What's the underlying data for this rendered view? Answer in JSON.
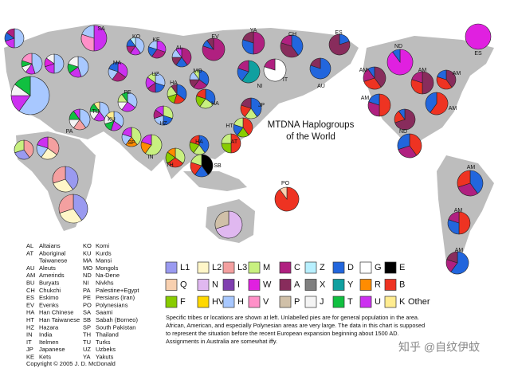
{
  "title": [
    "MTDNA Haplogroups",
    "of the World"
  ],
  "note": [
    "Specific tribes or locations are shown at left. Unlabelled pies are for general population in the area.",
    "African, American, and especially Polynesian areas are very large. The data in this chart is supposed",
    "to represent the situation before the recent European expansion beginning about 1500 AD.",
    "Assignments in Australia are somewhat iffy."
  ],
  "copyright": "Copyright © 2005 J. D. McDonald",
  "watermark": "知乎 @自纹伊蚊",
  "abbreviations": [
    [
      {
        "code": "AL",
        "name": "Altaians"
      },
      {
        "code": "AT",
        "name": "Aboriginal"
      },
      {
        "code": null,
        "name": "Taiwanese"
      },
      {
        "code": "AU",
        "name": "Aleuts"
      },
      {
        "code": "AM",
        "name": "Amerinds"
      },
      {
        "code": "BU",
        "name": "Buryats"
      },
      {
        "code": "CH",
        "name": "Chukchi"
      },
      {
        "code": "ES",
        "name": "Eskimo"
      },
      {
        "code": "EV",
        "name": "Evenks"
      },
      {
        "code": "HA",
        "name": "Han Chinese"
      },
      {
        "code": "HT",
        "name": "Han Taiwanese"
      },
      {
        "code": "HZ",
        "name": "Hazara"
      },
      {
        "code": "IN",
        "name": "India"
      },
      {
        "code": "IT",
        "name": "Itelmen"
      },
      {
        "code": "JP",
        "name": "Japanese"
      },
      {
        "code": "KE",
        "name": "Kets"
      }
    ],
    [
      {
        "code": "KO",
        "name": "Komi"
      },
      {
        "code": "KU",
        "name": "Kurds"
      },
      {
        "code": "MA",
        "name": "Mansi"
      },
      {
        "code": "MO",
        "name": "Mongols"
      },
      {
        "code": "ND",
        "name": "Na-Dene"
      },
      {
        "code": "NI",
        "name": "Nivkhs"
      },
      {
        "code": "PA",
        "name": "Palestine+Egypt"
      },
      {
        "code": "PE",
        "name": "Persians (Iran)"
      },
      {
        "code": "PO",
        "name": "Polynesians"
      },
      {
        "code": "SA",
        "name": "Saami"
      },
      {
        "code": "SB",
        "name": "Sabah (Borneo)"
      },
      {
        "code": "SP",
        "name": "South Pakistan"
      },
      {
        "code": "TH",
        "name": "Thailand"
      },
      {
        "code": "TU",
        "name": "Turks"
      },
      {
        "code": "UZ",
        "name": "Uzbeks"
      },
      {
        "code": "YA",
        "name": "Yakuts"
      }
    ]
  ],
  "legend": [
    [
      {
        "label": "L1",
        "color": "#9a9af0"
      },
      {
        "label": "L2",
        "color": "#fff6c8"
      },
      {
        "label": "L3",
        "color": "#f4a0a0"
      },
      {
        "label": "M",
        "color": "#c8f080"
      },
      {
        "label": "C",
        "color": "#b02080"
      },
      {
        "label": "Z",
        "color": "#b8f0ff"
      },
      {
        "label": "D",
        "color": "#2266dd"
      },
      {
        "label": "G",
        "color": "#ffffff"
      },
      {
        "label": "E",
        "color": "#000000"
      }
    ],
    [
      {
        "label": "Q",
        "color": "#f8d0b0"
      },
      {
        "label": "N",
        "color": "#e0b8f0"
      },
      {
        "label": "I",
        "color": "#8040b0"
      },
      {
        "label": "W",
        "color": "#e020e0"
      },
      {
        "label": "A",
        "color": "#882c5c"
      },
      {
        "label": "X",
        "color": "#808080"
      },
      {
        "label": "Y",
        "color": "#10a0a0"
      },
      {
        "label": "R",
        "color": "#ff8c00"
      },
      {
        "label": "B",
        "color": "#ee3322"
      }
    ],
    [
      {
        "label": "F",
        "color": "#88cc00"
      },
      {
        "label": "HV",
        "color": "#ffd800"
      },
      {
        "label": "H",
        "color": "#a8c8ff"
      },
      {
        "label": "V",
        "color": "#ff90c8"
      },
      {
        "label": "P",
        "color": "#d0c0a8"
      },
      {
        "label": "J",
        "color": "#f4f4f4"
      },
      {
        "label": "T",
        "color": "#10c040"
      },
      {
        "label": "U",
        "color": "#cc30f0"
      },
      {
        "label": "K",
        "color": "#ffec90"
      },
      {
        "label": "Other"
      }
    ]
  ],
  "pies": [
    {
      "label": null,
      "groups": [
        "H",
        "U",
        "D",
        "C"
      ],
      "values": [
        50,
        20,
        15,
        15
      ]
    },
    {
      "label": "SA",
      "groups": [
        "U",
        "V",
        "H"
      ],
      "values": [
        50,
        30,
        20
      ]
    },
    {
      "label": "KO",
      "groups": [
        "H",
        "U",
        "C",
        "D",
        "Z"
      ],
      "values": [
        40,
        20,
        15,
        15,
        10
      ]
    },
    {
      "label": "KE",
      "groups": [
        "U",
        "C",
        "D",
        "H"
      ],
      "values": [
        30,
        30,
        20,
        20
      ]
    },
    {
      "label": null,
      "groups": [
        "H",
        "U",
        "J",
        "T",
        "V"
      ],
      "values": [
        45,
        15,
        10,
        10,
        20
      ]
    },
    {
      "label": null,
      "groups": [
        "H",
        "U",
        "W",
        "J"
      ],
      "values": [
        50,
        20,
        15,
        15
      ]
    },
    {
      "label": null,
      "groups": [
        "H",
        "U",
        "T",
        "J"
      ],
      "values": [
        45,
        20,
        15,
        20
      ]
    },
    {
      "label": "MA",
      "groups": [
        "U",
        "C",
        "H",
        "D"
      ],
      "values": [
        35,
        25,
        20,
        20
      ]
    },
    {
      "label": "AL",
      "groups": [
        "C",
        "D",
        "A",
        "H",
        "U"
      ],
      "values": [
        40,
        20,
        15,
        15,
        10
      ]
    },
    {
      "label": "EV",
      "groups": [
        "C",
        "D",
        "A"
      ],
      "values": [
        80,
        10,
        10
      ]
    },
    {
      "label": "YA",
      "groups": [
        "C",
        "D",
        "A"
      ],
      "values": [
        50,
        30,
        20
      ]
    },
    {
      "label": "CH",
      "groups": [
        "D",
        "A",
        "C"
      ],
      "values": [
        40,
        40,
        20
      ]
    },
    {
      "label": "ES",
      "groups": [
        "D",
        "A"
      ],
      "values": [
        20,
        80
      ]
    },
    {
      "label": "ES",
      "groups": [
        "W"
      ],
      "values": [
        100
      ]
    },
    {
      "label": "ND",
      "groups": [
        "W",
        "D"
      ],
      "values": [
        90,
        10
      ]
    },
    {
      "label": "UZ",
      "groups": [
        "H",
        "D",
        "C",
        "U",
        "M"
      ],
      "values": [
        30,
        20,
        15,
        20,
        15
      ]
    },
    {
      "label": "MO",
      "groups": [
        "D",
        "C",
        "A",
        "H",
        "M"
      ],
      "values": [
        35,
        25,
        15,
        15,
        10
      ]
    },
    {
      "label": "NI",
      "groups": [
        "Y",
        "D",
        "C"
      ],
      "values": [
        60,
        20,
        20
      ]
    },
    {
      "label": "IT",
      "groups": [
        "G",
        "C"
      ],
      "values": [
        80,
        20
      ]
    },
    {
      "label": "AU",
      "groups": [
        "D",
        "A"
      ],
      "values": [
        80,
        20
      ]
    },
    {
      "label": "AM",
      "groups": [
        "A",
        "B",
        "C",
        "D"
      ],
      "values": [
        40,
        30,
        20,
        10
      ]
    },
    {
      "label": "AM",
      "groups": [
        "A",
        "B",
        "C"
      ],
      "values": [
        50,
        30,
        20
      ]
    },
    {
      "label": "AM",
      "groups": [
        "A",
        "B",
        "D"
      ],
      "values": [
        40,
        40,
        20
      ]
    },
    {
      "label": "AM",
      "groups": [
        "B",
        "C",
        "D"
      ],
      "values": [
        50,
        30,
        20
      ]
    },
    {
      "label": "AM",
      "groups": [
        "B",
        "D"
      ],
      "values": [
        60,
        40
      ]
    },
    {
      "label": "ND",
      "groups": [
        "A",
        "B",
        "D"
      ],
      "values": [
        70,
        20,
        10
      ]
    },
    {
      "label": "HA",
      "groups": [
        "D",
        "B",
        "F",
        "M",
        "A"
      ],
      "values": [
        35,
        20,
        15,
        20,
        10
      ]
    },
    {
      "label": "HA",
      "groups": [
        "D",
        "M",
        "F",
        "B"
      ],
      "values": [
        35,
        25,
        20,
        20
      ]
    },
    {
      "label": "JP",
      "groups": [
        "D",
        "M",
        "B",
        "A"
      ],
      "values": [
        40,
        20,
        20,
        20
      ]
    },
    {
      "label": "HT",
      "groups": [
        "B",
        "F",
        "D",
        "M"
      ],
      "values": [
        40,
        20,
        20,
        20
      ]
    },
    {
      "label": "AT",
      "groups": [
        "B",
        "F",
        "M"
      ],
      "values": [
        50,
        25,
        25
      ]
    },
    {
      "label": "HA",
      "groups": [
        "D",
        "M",
        "F",
        "B"
      ],
      "values": [
        40,
        20,
        20,
        20
      ]
    },
    {
      "label": "PE",
      "groups": [
        "H",
        "U",
        "J",
        "M",
        "T"
      ],
      "values": [
        35,
        25,
        15,
        15,
        10
      ]
    },
    {
      "label": "TU",
      "groups": [
        "H",
        "U",
        "J",
        "T",
        "K"
      ],
      "values": [
        40,
        20,
        15,
        15,
        10
      ]
    },
    {
      "label": "KU",
      "groups": [
        "H",
        "U",
        "T",
        "J",
        "K"
      ],
      "values": [
        35,
        20,
        15,
        15,
        15
      ]
    },
    {
      "label": "PA",
      "groups": [
        "H",
        "L3",
        "J",
        "T",
        "U"
      ],
      "values": [
        40,
        20,
        15,
        15,
        10
      ]
    },
    {
      "label": "HZ",
      "groups": [
        "M",
        "D",
        "H",
        "C",
        "U"
      ],
      "values": [
        30,
        20,
        20,
        15,
        15
      ]
    },
    {
      "label": "SP",
      "groups": [
        "M",
        "R",
        "H",
        "U"
      ],
      "values": [
        40,
        20,
        20,
        20
      ]
    },
    {
      "label": "IN",
      "groups": [
        "M",
        "R",
        "U"
      ],
      "values": [
        60,
        20,
        20
      ]
    },
    {
      "label": "TH",
      "groups": [
        "M",
        "B",
        "F",
        "R"
      ],
      "values": [
        35,
        30,
        20,
        15
      ]
    },
    {
      "label": "SB",
      "groups": [
        "E",
        "D",
        "B",
        "M"
      ],
      "values": [
        40,
        20,
        20,
        20
      ]
    },
    {
      "label": null,
      "groups": [
        "H",
        "U",
        "J",
        "T"
      ],
      "values": [
        60,
        15,
        10,
        15
      ]
    },
    {
      "label": null,
      "groups": [
        "L3",
        "L2",
        "H",
        "U"
      ],
      "values": [
        35,
        25,
        20,
        20
      ]
    },
    {
      "label": null,
      "groups": [
        "L3",
        "L1",
        "M"
      ],
      "values": [
        40,
        30,
        30
      ]
    },
    {
      "label": null,
      "groups": [
        "L1",
        "L2",
        "L3"
      ],
      "values": [
        40,
        30,
        30
      ]
    },
    {
      "label": null,
      "groups": [
        "L1",
        "L2",
        "L3"
      ],
      "values": [
        40,
        30,
        30
      ]
    },
    {
      "label": "PO",
      "groups": [
        "B",
        "Q"
      ],
      "values": [
        90,
        10
      ]
    },
    {
      "label": null,
      "groups": [
        "N",
        "P"
      ],
      "values": [
        70,
        30
      ]
    },
    {
      "label": null,
      "groups": [
        "B",
        "C",
        "D"
      ],
      "values": [
        40,
        30,
        30
      ]
    },
    {
      "label": "AM",
      "groups": [
        "D",
        "C",
        "B"
      ],
      "values": [
        40,
        30,
        30
      ]
    },
    {
      "label": "AM",
      "groups": [
        "B",
        "D",
        "C"
      ],
      "values": [
        50,
        30,
        20
      ]
    },
    {
      "label": "AM",
      "groups": [
        "D",
        "C",
        "A"
      ],
      "values": [
        60,
        20,
        20
      ]
    }
  ]
}
